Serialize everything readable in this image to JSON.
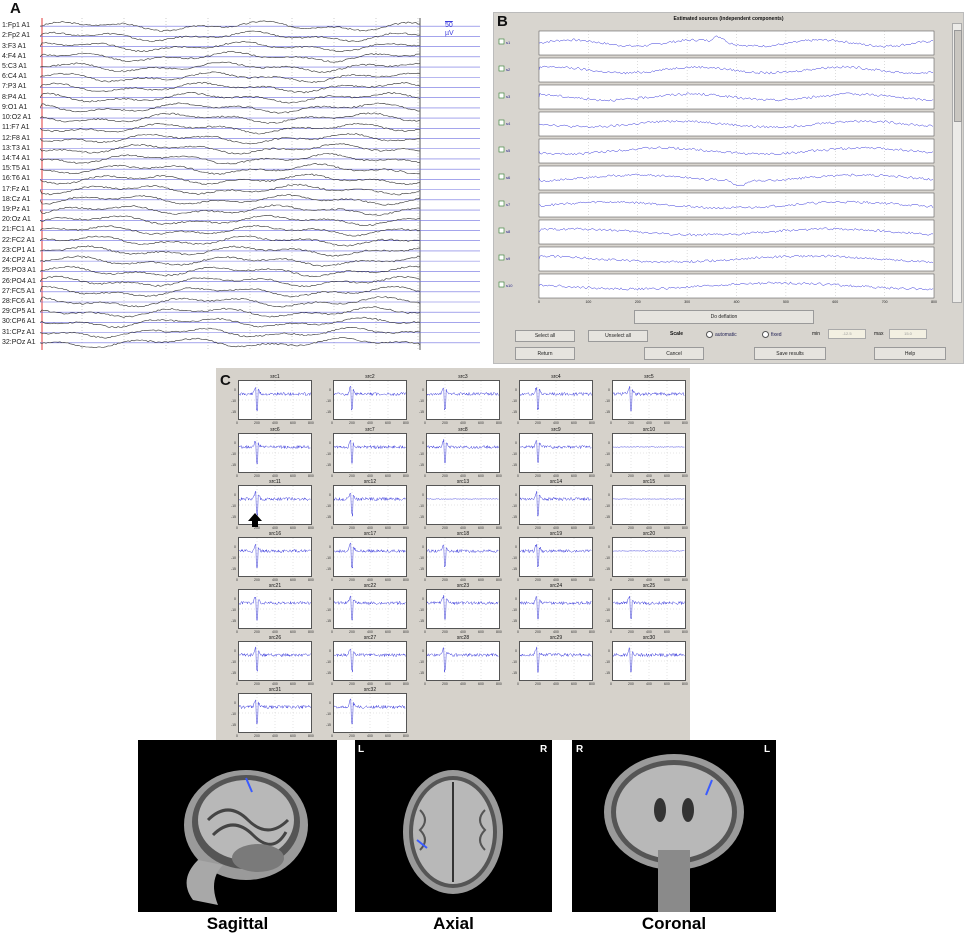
{
  "panels": {
    "a": "A",
    "b": "B",
    "c": "C"
  },
  "panel_a": {
    "channels": [
      "1:Fp1 A1",
      "2:Fp2 A1",
      "3:F3 A1",
      "4:F4 A1",
      "5:C3 A1",
      "6:C4 A1",
      "7:P3 A1",
      "8:P4 A1",
      "9:O1 A1",
      "10:O2 A1",
      "11:F7 A1",
      "12:F8 A1",
      "13:T3 A1",
      "14:T4 A1",
      "15:T5 A1",
      "16:T6 A1",
      "17:Fz A1",
      "18:Cz A1",
      "19:Pz A1",
      "20:Oz A1",
      "21:FC1 A1",
      "22:FC2 A1",
      "23:CP1 A1",
      "24:CP2 A1",
      "25:PO3 A1",
      "26:PO4 A1",
      "27:FC5 A1",
      "28:FC6 A1",
      "29:CP5 A1",
      "30:CP6 A1",
      "31:CPz A1",
      "32:POz A1"
    ],
    "scale_value": "50",
    "scale_unit": "µV"
  },
  "panel_b": {
    "title": "Estimated sources (independent components)",
    "rows": [
      "s1",
      "s2",
      "s3",
      "s4",
      "s5",
      "s6",
      "s7",
      "s8",
      "s9",
      "s10"
    ],
    "x_ticks": [
      "0",
      "100",
      "200",
      "300",
      "400",
      "500",
      "600",
      "700",
      "800"
    ],
    "deflation_button": "Do deflation",
    "select_all": "Select all",
    "unselect_all": "Unselect all",
    "scale_label": "Scale",
    "automatic": "automatic",
    "fixed": "fixed",
    "min_label": "min",
    "max_label": "max",
    "min_value": "-12.5",
    "max_value": "15.0",
    "return": "Return",
    "cancel": "Cancel",
    "save": "Save results",
    "help": "Help"
  },
  "panel_c": {
    "titles": [
      "src1",
      "src2",
      "src3",
      "src4",
      "src5",
      "src6",
      "src7",
      "src8",
      "src9",
      "src10",
      "src11",
      "src12",
      "src13",
      "src14",
      "src15",
      "src16",
      "src17",
      "src18",
      "src19",
      "src20",
      "src21",
      "src22",
      "src23",
      "src24",
      "src25",
      "src26",
      "src27",
      "src28",
      "src29",
      "src30",
      "src31",
      "src32"
    ],
    "flat": [
      9,
      12,
      14,
      19
    ],
    "y_ticks": [
      "0",
      "-10",
      "-15"
    ],
    "x_ticks": [
      "0",
      "200",
      "400",
      "600",
      "800"
    ]
  },
  "mri": {
    "sagittal": "Sagittal",
    "axial": "Axial",
    "coronal": "Coronal",
    "axial_left": "L",
    "axial_right": "R",
    "coronal_left": "R",
    "coronal_right": "L"
  },
  "colors": {
    "trace": "#3b3bdc",
    "baseline": "#6f6fe0",
    "dipole": "#3a5bff",
    "marker": "#e03a3a"
  }
}
